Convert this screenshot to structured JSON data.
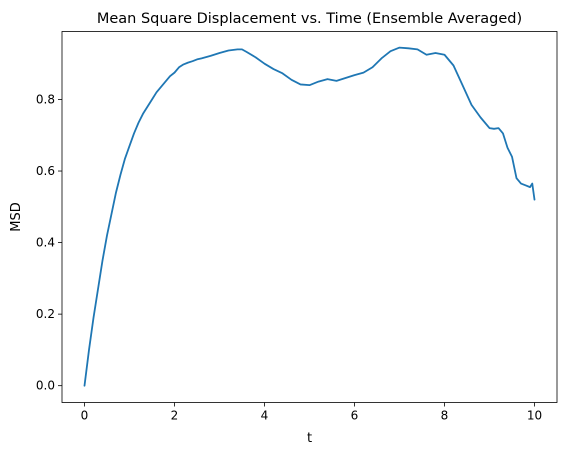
{
  "chart_data": {
    "type": "line",
    "title": "Mean Square Displacement vs. Time (Ensemble Averaged)",
    "xlabel": "t",
    "ylabel": "MSD",
    "xlim": [
      -0.5,
      10.5
    ],
    "ylim": [
      -0.047,
      0.99
    ],
    "xticks": [
      0,
      2,
      4,
      6,
      8,
      10
    ],
    "yticks": [
      0.0,
      0.2,
      0.4,
      0.6,
      0.8
    ],
    "xtick_labels": [
      "0",
      "2",
      "4",
      "6",
      "8",
      "10"
    ],
    "ytick_labels": [
      "0.0",
      "0.2",
      "0.4",
      "0.6",
      "0.8"
    ],
    "grid": false,
    "line_color": "#1f77b4",
    "series": [
      {
        "x": [
          0.0,
          0.1,
          0.2,
          0.3,
          0.4,
          0.5,
          0.6,
          0.7,
          0.8,
          0.9,
          1.0,
          1.1,
          1.2,
          1.3,
          1.4,
          1.5,
          1.6,
          1.7,
          1.8,
          1.9,
          2.0,
          2.1,
          2.2,
          2.3,
          2.4,
          2.5,
          2.6,
          2.8,
          3.0,
          3.2,
          3.4,
          3.5,
          3.6,
          3.8,
          4.0,
          4.2,
          4.4,
          4.6,
          4.8,
          5.0,
          5.2,
          5.4,
          5.6,
          5.8,
          6.0,
          6.2,
          6.4,
          6.6,
          6.8,
          7.0,
          7.2,
          7.4,
          7.6,
          7.8,
          8.0,
          8.2,
          8.4,
          8.6,
          8.8,
          9.0,
          9.1,
          9.2,
          9.3,
          9.4,
          9.5,
          9.6,
          9.7,
          9.8,
          9.9,
          9.95,
          10.0
        ],
        "y": [
          0.0,
          0.1,
          0.19,
          0.27,
          0.35,
          0.42,
          0.48,
          0.54,
          0.59,
          0.635,
          0.67,
          0.705,
          0.735,
          0.76,
          0.78,
          0.8,
          0.82,
          0.835,
          0.85,
          0.865,
          0.875,
          0.89,
          0.898,
          0.903,
          0.907,
          0.912,
          0.915,
          0.922,
          0.93,
          0.937,
          0.94,
          0.94,
          0.933,
          0.918,
          0.9,
          0.885,
          0.873,
          0.855,
          0.842,
          0.84,
          0.85,
          0.857,
          0.852,
          0.86,
          0.868,
          0.875,
          0.89,
          0.915,
          0.935,
          0.945,
          0.943,
          0.94,
          0.925,
          0.93,
          0.925,
          0.895,
          0.84,
          0.785,
          0.75,
          0.72,
          0.718,
          0.72,
          0.705,
          0.665,
          0.64,
          0.58,
          0.565,
          0.56,
          0.555,
          0.565,
          0.52
        ]
      }
    ]
  }
}
